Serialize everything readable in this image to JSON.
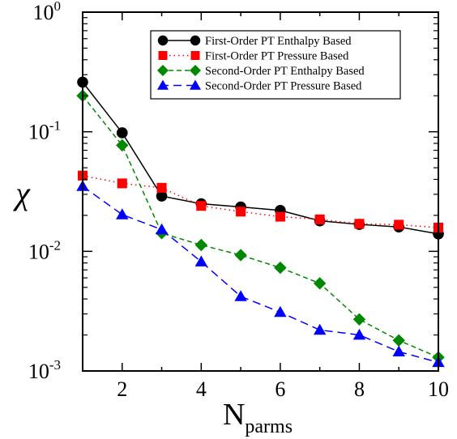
{
  "chart_data": {
    "type": "line",
    "xlabel": "N",
    "xlabel_subscript": "parms",
    "ylabel": "χ",
    "xlim": [
      1,
      10
    ],
    "ylim": [
      0.001,
      1
    ],
    "yscale": "log",
    "grid": false,
    "legend_position": "top-right",
    "x_ticks": [
      "2",
      "4",
      "6",
      "8",
      "10"
    ],
    "y_ticks": [
      {
        "base": "10",
        "exp": "0",
        "value": 1
      },
      {
        "base": "10",
        "exp": "-1",
        "value": 0.1
      },
      {
        "base": "10",
        "exp": "-2",
        "value": 0.01
      },
      {
        "base": "10",
        "exp": "-3",
        "value": 0.001
      }
    ],
    "x": [
      1,
      2,
      3,
      4,
      5,
      6,
      7,
      8,
      9,
      10
    ],
    "series": [
      {
        "name": "First-Order PT Enthalpy Based",
        "color": "#000000",
        "marker": "circle",
        "line_style": "solid",
        "values": [
          0.26,
          0.098,
          0.029,
          0.025,
          0.0235,
          0.022,
          0.018,
          0.0168,
          0.016,
          0.014
        ]
      },
      {
        "name": "First-Order PT Pressure Based",
        "color": "#ff0000",
        "marker": "square",
        "line_style": "dotted",
        "values": [
          0.043,
          0.037,
          0.034,
          0.024,
          0.0215,
          0.0195,
          0.0185,
          0.017,
          0.0167,
          0.0158
        ]
      },
      {
        "name": "Second-Order PT Enthalpy Based",
        "color": "#008800",
        "marker": "diamond",
        "line_style": "dashed",
        "values": [
          0.2,
          0.077,
          0.0142,
          0.0113,
          0.0093,
          0.0073,
          0.0054,
          0.0027,
          0.0018,
          0.0013
        ]
      },
      {
        "name": "Second-Order PT Pressure Based",
        "color": "#0000ff",
        "marker": "triangle",
        "line_style": "longdash",
        "values": [
          0.035,
          0.0203,
          0.0152,
          0.0082,
          0.0042,
          0.0031,
          0.0022,
          0.002,
          0.00145,
          0.00118
        ]
      }
    ]
  }
}
